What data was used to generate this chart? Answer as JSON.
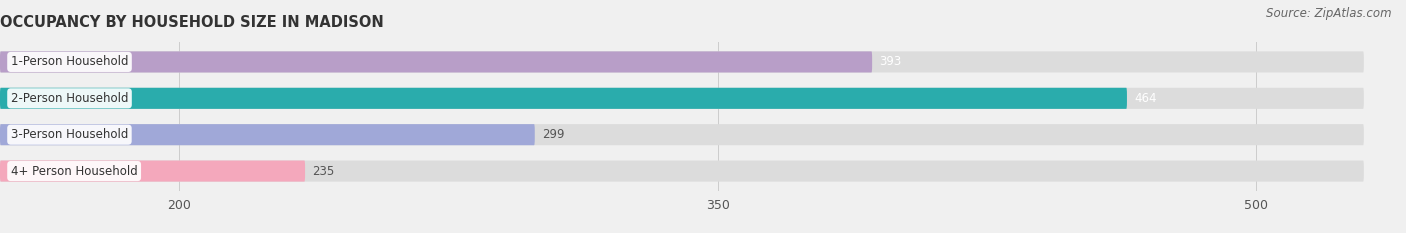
{
  "title": "OCCUPANCY BY HOUSEHOLD SIZE IN MADISON",
  "source": "Source: ZipAtlas.com",
  "categories": [
    "1-Person Household",
    "2-Person Household",
    "3-Person Household",
    "4+ Person Household"
  ],
  "values": [
    393,
    464,
    299,
    235
  ],
  "bar_colors": [
    "#b89ec8",
    "#2aacac",
    "#a0a8d8",
    "#f4a8bc"
  ],
  "bar_bg_color": "#dcdcdc",
  "xlim_min": 150,
  "xlim_max": 530,
  "xticks": [
    200,
    350,
    500
  ],
  "background_color": "#f0f0f0",
  "bar_height": 0.58,
  "title_fontsize": 10.5,
  "source_fontsize": 8.5,
  "label_fontsize": 8.5,
  "value_fontsize": 8.5,
  "value_colors": [
    "white",
    "white",
    "#555555",
    "#555555"
  ]
}
